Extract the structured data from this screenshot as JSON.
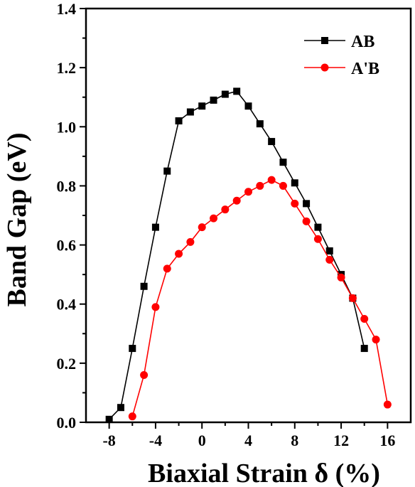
{
  "chart_data": {
    "type": "line",
    "title": "",
    "xlabel": "Biaxial Strain δ (%)",
    "ylabel": "Band Gap (eV)",
    "xlim": [
      -10,
      18
    ],
    "ylim": [
      0,
      1.4
    ],
    "xticks": [
      -8,
      -4,
      0,
      4,
      8,
      12,
      16
    ],
    "yticks": [
      0.0,
      0.2,
      0.4,
      0.6,
      0.8,
      1.0,
      1.2,
      1.4
    ],
    "xtick_labels": [
      "-8",
      "-4",
      "0",
      "4",
      "8",
      "12",
      "16"
    ],
    "ytick_labels": [
      "0.0",
      "0.2",
      "0.4",
      "0.6",
      "0.8",
      "1.0",
      "1.2",
      "1.4"
    ],
    "grid": false,
    "legend_position": "top-right",
    "series": [
      {
        "name": "AB",
        "color": "#000000",
        "marker": "square",
        "x": [
          -8,
          -7,
          -6,
          -5,
          -4,
          -3,
          -2,
          -1,
          0,
          1,
          2,
          3,
          4,
          5,
          6,
          7,
          8,
          9,
          10,
          11,
          12,
          13,
          14
        ],
        "y": [
          0.01,
          0.05,
          0.25,
          0.46,
          0.66,
          0.85,
          1.02,
          1.05,
          1.07,
          1.09,
          1.11,
          1.12,
          1.07,
          1.01,
          0.95,
          0.88,
          0.81,
          0.74,
          0.66,
          0.58,
          0.5,
          0.42,
          0.25
        ]
      },
      {
        "name": "A'B",
        "color": "#ff0000",
        "marker": "circle",
        "x": [
          -6,
          -5,
          -4,
          -3,
          -2,
          -1,
          0,
          1,
          2,
          3,
          4,
          5,
          6,
          7,
          8,
          9,
          10,
          11,
          12,
          13,
          14,
          15,
          16
        ],
        "y": [
          0.02,
          0.16,
          0.39,
          0.52,
          0.57,
          0.61,
          0.66,
          0.69,
          0.72,
          0.75,
          0.78,
          0.8,
          0.82,
          0.8,
          0.74,
          0.68,
          0.62,
          0.55,
          0.49,
          0.42,
          0.35,
          0.28,
          0.06
        ]
      }
    ]
  }
}
